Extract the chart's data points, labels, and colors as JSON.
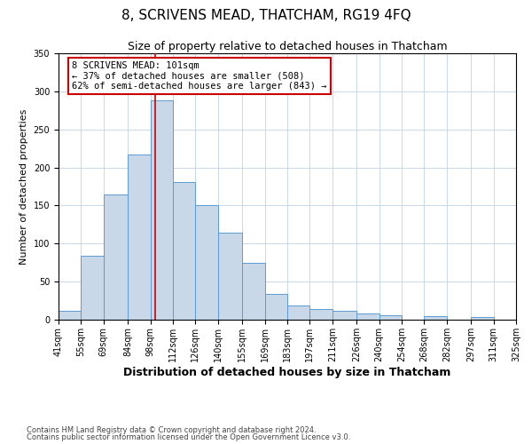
{
  "title": "8, SCRIVENS MEAD, THATCHAM, RG19 4FQ",
  "subtitle": "Size of property relative to detached houses in Thatcham",
  "xlabel": "Distribution of detached houses by size in Thatcham",
  "ylabel": "Number of detached properties",
  "bin_edges": [
    41,
    55,
    69,
    84,
    98,
    112,
    126,
    140,
    155,
    169,
    183,
    197,
    211,
    226,
    240,
    254,
    268,
    282,
    297,
    311,
    325
  ],
  "bin_labels": [
    "41sqm",
    "55sqm",
    "69sqm",
    "84sqm",
    "98sqm",
    "112sqm",
    "126sqm",
    "140sqm",
    "155sqm",
    "169sqm",
    "183sqm",
    "197sqm",
    "211sqm",
    "226sqm",
    "240sqm",
    "254sqm",
    "268sqm",
    "282sqm",
    "297sqm",
    "311sqm",
    "325sqm"
  ],
  "counts": [
    12,
    84,
    164,
    217,
    288,
    181,
    150,
    114,
    75,
    34,
    19,
    14,
    12,
    8,
    6,
    0,
    5,
    0,
    3,
    0,
    2
  ],
  "bar_color": "#c8d8e8",
  "bar_edge_color": "#5b9bd5",
  "vline_x": 101,
  "vline_color": "#cc0000",
  "annotation_line1": "8 SCRIVENS MEAD: 101sqm",
  "annotation_line2": "← 37% of detached houses are smaller (508)",
  "annotation_line3": "62% of semi-detached houses are larger (843) →",
  "annotation_box_color": "#ffffff",
  "annotation_box_edge_color": "#cc0000",
  "ylim": [
    0,
    350
  ],
  "footnote1": "Contains HM Land Registry data © Crown copyright and database right 2024.",
  "footnote2": "Contains public sector information licensed under the Open Government Licence v3.0.",
  "background_color": "#ffffff",
  "grid_color": "#c8d8e8",
  "title_fontsize": 11,
  "subtitle_fontsize": 9,
  "xlabel_fontsize": 9,
  "ylabel_fontsize": 8,
  "tick_fontsize": 7,
  "annotation_fontsize": 7.5,
  "footnote_fontsize": 6
}
